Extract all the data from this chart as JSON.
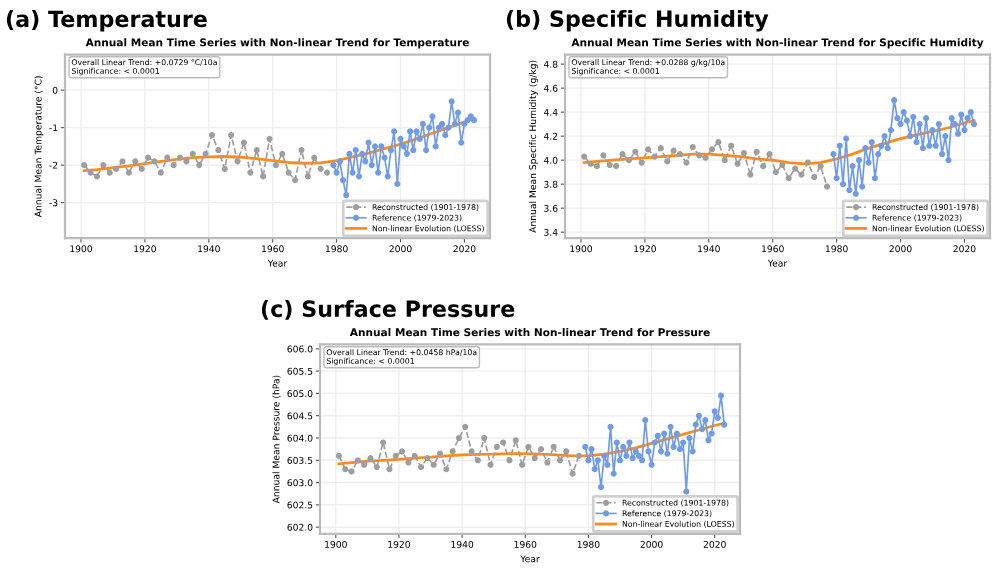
{
  "chart_data": [
    {
      "type": "line",
      "title": "(a) Temperature",
      "subtitle": "Annual Mean Time Series with Non-linear Trend for Temperature",
      "xlabel": "Year",
      "ylabel": "Annual Mean Temperature (°C)",
      "annotations": [
        "Overall Linear Trend: +0.0729 °C/10a\nSignificance: < 0.0001"
      ],
      "xlim": [
        1895,
        2028
      ],
      "xticks": [
        1900,
        1920,
        1940,
        1960,
        1980,
        2000,
        2020
      ],
      "ylim": [
        -3.95,
        0.95
      ],
      "yticks": [
        -3,
        -2,
        -1,
        0
      ],
      "grid": true,
      "legend": "bottom right",
      "series": [
        {
          "name": "Reconstructed (1901-1978)",
          "color": "#9e9e9e",
          "line_style": "dashed",
          "marker": "circle",
          "x": [
            1901,
            1903,
            1905,
            1907,
            1909,
            1911,
            1913,
            1915,
            1917,
            1919,
            1921,
            1923,
            1925,
            1927,
            1929,
            1931,
            1933,
            1935,
            1937,
            1939,
            1941,
            1943,
            1945,
            1947,
            1949,
            1951,
            1953,
            1955,
            1957,
            1959,
            1961,
            1963,
            1965,
            1967,
            1969,
            1971,
            1973,
            1975,
            1977
          ],
          "values": [
            -2.0,
            -2.2,
            -2.3,
            -2.0,
            -2.2,
            -2.1,
            -1.9,
            -2.2,
            -1.9,
            -2.1,
            -1.8,
            -1.9,
            -2.2,
            -1.8,
            -2.0,
            -1.8,
            -1.9,
            -1.7,
            -2.0,
            -1.7,
            -1.2,
            -1.6,
            -2.1,
            -1.2,
            -1.9,
            -1.4,
            -2.2,
            -1.6,
            -2.3,
            -1.3,
            -2.0,
            -1.7,
            -2.2,
            -2.4,
            -1.6,
            -2.3,
            -1.8,
            -2.1,
            -2.2
          ]
        },
        {
          "name": "Reference (1979-2023)",
          "color": "#6f9be8",
          "line_style": "solid",
          "marker": "circle",
          "x": [
            1979,
            1980,
            1981,
            1982,
            1983,
            1984,
            1985,
            1986,
            1987,
            1988,
            1989,
            1990,
            1991,
            1992,
            1993,
            1994,
            1995,
            1996,
            1997,
            1998,
            1999,
            2000,
            2001,
            2002,
            2003,
            2004,
            2005,
            2006,
            2007,
            2008,
            2009,
            2010,
            2011,
            2012,
            2013,
            2014,
            2015,
            2016,
            2017,
            2018,
            2019,
            2020,
            2021,
            2022,
            2023
          ],
          "values": [
            -2.0,
            -2.2,
            -1.9,
            -2.4,
            -2.8,
            -1.7,
            -2.2,
            -1.6,
            -2.3,
            -1.7,
            -1.9,
            -1.4,
            -2.0,
            -1.5,
            -2.2,
            -1.5,
            -1.8,
            -2.3,
            -1.6,
            -1.1,
            -2.5,
            -1.3,
            -1.5,
            -1.7,
            -1.1,
            -1.6,
            -1.1,
            -1.3,
            -0.9,
            -1.6,
            -1.0,
            -0.7,
            -1.5,
            -1.0,
            -0.9,
            -1.2,
            -1.0,
            -0.3,
            -0.9,
            -0.6,
            -1.4,
            -0.9,
            -0.8,
            -0.7,
            -0.8
          ]
        },
        {
          "name": "Non-linear Evolution (LOESS)",
          "color": "#ff8c1a",
          "line_style": "solid",
          "marker": "none",
          "x": [
            1901,
            1905,
            1910,
            1915,
            1920,
            1925,
            1930,
            1935,
            1940,
            1945,
            1950,
            1955,
            1960,
            1965,
            1970,
            1975,
            1980,
            1985,
            1990,
            1995,
            2000,
            2005,
            2010,
            2015,
            2020,
            2023
          ],
          "values": [
            -2.15,
            -2.12,
            -2.07,
            -2.02,
            -1.96,
            -1.9,
            -1.85,
            -1.8,
            -1.78,
            -1.77,
            -1.79,
            -1.83,
            -1.88,
            -1.93,
            -1.95,
            -1.94,
            -1.88,
            -1.78,
            -1.68,
            -1.56,
            -1.44,
            -1.3,
            -1.15,
            -1.0,
            -0.85,
            -0.76
          ]
        }
      ]
    },
    {
      "type": "line",
      "title": "(b) Specific Humidity",
      "subtitle": "Annual Mean Time Series with Non-linear Trend for Specific Humidity",
      "xlabel": "Year",
      "ylabel": "Annual Mean Specific Humidity (g/kg)",
      "annotations": [
        "Overall Linear Trend: +0.0288 g/kg/10a\nSignificance: < 0.0001"
      ],
      "xlim": [
        1895,
        2028
      ],
      "xticks": [
        1900,
        1920,
        1940,
        1960,
        1980,
        2000,
        2020
      ],
      "ylim": [
        3.35,
        4.88
      ],
      "yticks": [
        3.4,
        3.6,
        3.8,
        {
          "value": 4,
          "label": "4.0"
        },
        4.2,
        4.4,
        4.6,
        4.8
      ],
      "grid": true,
      "legend": "bottom right",
      "series": [
        {
          "name": "Reconstructed (1901-1978)",
          "color": "#9e9e9e",
          "line_style": "dashed",
          "marker": "circle",
          "x": [
            1901,
            1903,
            1905,
            1907,
            1909,
            1911,
            1913,
            1915,
            1917,
            1919,
            1921,
            1923,
            1925,
            1927,
            1929,
            1931,
            1933,
            1935,
            1937,
            1939,
            1941,
            1943,
            1945,
            1947,
            1949,
            1951,
            1953,
            1955,
            1957,
            1959,
            1961,
            1963,
            1965,
            1967,
            1969,
            1971,
            1973,
            1975,
            1977
          ],
          "values": [
            4.03,
            3.97,
            3.95,
            4.04,
            3.96,
            3.95,
            4.05,
            4.0,
            4.07,
            3.98,
            4.09,
            4.03,
            4.1,
            3.99,
            4.08,
            4.05,
            3.98,
            4.11,
            4.04,
            4.02,
            4.09,
            4.15,
            4.0,
            4.12,
            3.97,
            4.06,
            3.88,
            4.07,
            3.95,
            4.05,
            3.9,
            3.96,
            3.85,
            3.93,
            3.88,
            3.98,
            3.86,
            3.95,
            3.78
          ]
        },
        {
          "name": "Reference (1979-2023)",
          "color": "#6f9be8",
          "line_style": "solid",
          "marker": "circle",
          "x": [
            1979,
            1980,
            1981,
            1982,
            1983,
            1984,
            1985,
            1986,
            1987,
            1988,
            1989,
            1990,
            1991,
            1992,
            1993,
            1994,
            1995,
            1996,
            1997,
            1998,
            1999,
            2000,
            2001,
            2002,
            2003,
            2004,
            2005,
            2006,
            2007,
            2008,
            2009,
            2010,
            2011,
            2012,
            2013,
            2014,
            2015,
            2016,
            2017,
            2018,
            2019,
            2020,
            2021,
            2022,
            2023
          ],
          "values": [
            4.05,
            3.85,
            4.12,
            3.8,
            4.18,
            3.75,
            3.95,
            3.72,
            4.0,
            3.78,
            4.1,
            3.98,
            4.15,
            3.85,
            4.05,
            4.12,
            4.2,
            4.1,
            4.25,
            4.5,
            4.35,
            4.3,
            4.4,
            4.33,
            4.2,
            4.36,
            4.15,
            4.3,
            4.1,
            4.35,
            4.12,
            4.25,
            4.12,
            4.3,
            4.05,
            4.2,
            4.0,
            4.35,
            4.3,
            4.22,
            4.38,
            4.25,
            4.35,
            4.4,
            4.3
          ]
        },
        {
          "name": "Non-linear Evolution (LOESS)",
          "color": "#ff8c1a",
          "line_style": "solid",
          "marker": "none",
          "x": [
            1901,
            1905,
            1910,
            1915,
            1920,
            1925,
            1930,
            1935,
            1940,
            1945,
            1950,
            1955,
            1960,
            1965,
            1970,
            1975,
            1980,
            1985,
            1990,
            1995,
            2000,
            2005,
            2010,
            2015,
            2020,
            2023
          ],
          "values": [
            3.98,
            3.99,
            4.0,
            4.01,
            4.02,
            4.03,
            4.04,
            4.05,
            4.05,
            4.04,
            4.03,
            4.01,
            4.0,
            3.98,
            3.97,
            3.98,
            4.01,
            4.05,
            4.1,
            4.14,
            4.18,
            4.21,
            4.24,
            4.27,
            4.31,
            4.33
          ]
        }
      ]
    },
    {
      "type": "line",
      "title": "(c) Surface Pressure",
      "subtitle": "Annual Mean Time Series with Non-linear Trend for Pressure",
      "xlabel": "Year",
      "ylabel": "Annual Mean Pressure (hPa)",
      "annotations": [
        "Overall Linear Trend: +0.0458 hPa/10a\nSignificance: < 0.0001"
      ],
      "xlim": [
        1895,
        2028
      ],
      "xticks": [
        1900,
        1920,
        1940,
        1960,
        1980,
        2000,
        2020
      ],
      "ylim": [
        601.85,
        606.1
      ],
      "yticks": [
        {
          "value": 602,
          "label": "602.0"
        },
        602.5,
        {
          "value": 603,
          "label": "603.0"
        },
        603.5,
        {
          "value": 604,
          "label": "604.0"
        },
        604.5,
        {
          "value": 605,
          "label": "605.0"
        },
        605.5,
        {
          "value": 606,
          "label": "606.0"
        }
      ],
      "grid": true,
      "legend": "bottom right",
      "series": [
        {
          "name": "Reconstructed (1901-1978)",
          "color": "#9e9e9e",
          "line_style": "dashed",
          "marker": "circle",
          "x": [
            1901,
            1903,
            1905,
            1907,
            1909,
            1911,
            1913,
            1915,
            1917,
            1919,
            1921,
            1923,
            1925,
            1927,
            1929,
            1931,
            1933,
            1935,
            1937,
            1939,
            1941,
            1943,
            1945,
            1947,
            1949,
            1951,
            1953,
            1955,
            1957,
            1959,
            1961,
            1963,
            1965,
            1967,
            1969,
            1971,
            1973,
            1975,
            1977
          ],
          "values": [
            603.6,
            603.3,
            603.25,
            603.5,
            603.4,
            603.55,
            603.35,
            603.9,
            603.3,
            603.6,
            603.7,
            603.45,
            603.6,
            603.35,
            603.55,
            603.4,
            603.65,
            603.3,
            603.7,
            604.0,
            604.25,
            603.7,
            603.5,
            604.0,
            603.4,
            603.8,
            603.9,
            603.5,
            603.95,
            603.4,
            603.8,
            603.55,
            603.75,
            603.45,
            603.8,
            603.5,
            603.7,
            603.2,
            603.6
          ]
        },
        {
          "name": "Reference (1979-2023)",
          "color": "#6f9be8",
          "line_style": "solid",
          "marker": "circle",
          "x": [
            1979,
            1980,
            1981,
            1982,
            1983,
            1984,
            1985,
            1986,
            1987,
            1988,
            1989,
            1990,
            1991,
            1992,
            1993,
            1994,
            1995,
            1996,
            1997,
            1998,
            1999,
            2000,
            2001,
            2002,
            2003,
            2004,
            2005,
            2006,
            2007,
            2008,
            2009,
            2010,
            2011,
            2012,
            2013,
            2014,
            2015,
            2016,
            2017,
            2018,
            2019,
            2020,
            2021,
            2022,
            2023
          ],
          "values": [
            603.8,
            603.5,
            603.75,
            603.3,
            603.5,
            602.9,
            603.6,
            603.4,
            604.25,
            603.2,
            603.9,
            603.5,
            603.8,
            603.6,
            603.9,
            603.55,
            603.7,
            603.6,
            603.5,
            604.4,
            603.7,
            603.4,
            603.9,
            604.05,
            603.7,
            604.1,
            603.65,
            604.25,
            603.8,
            604.1,
            603.75,
            603.9,
            602.8,
            604.0,
            603.7,
            604.3,
            604.5,
            604.2,
            604.4,
            603.95,
            604.1,
            604.6,
            604.45,
            604.95,
            604.3
          ]
        },
        {
          "name": "Non-linear Evolution (LOESS)",
          "color": "#ff8c1a",
          "line_style": "solid",
          "marker": "none",
          "x": [
            1901,
            1905,
            1910,
            1915,
            1920,
            1925,
            1930,
            1935,
            1940,
            1945,
            1950,
            1955,
            1960,
            1965,
            1970,
            1975,
            1980,
            1985,
            1990,
            1995,
            2000,
            2005,
            2010,
            2015,
            2020,
            2023
          ],
          "values": [
            603.42,
            603.45,
            603.48,
            603.5,
            603.52,
            603.55,
            603.57,
            603.6,
            603.62,
            603.63,
            603.64,
            603.65,
            603.65,
            603.64,
            603.62,
            603.6,
            603.6,
            603.64,
            603.7,
            603.78,
            603.88,
            603.98,
            604.08,
            604.18,
            604.28,
            604.33
          ]
        }
      ]
    }
  ]
}
